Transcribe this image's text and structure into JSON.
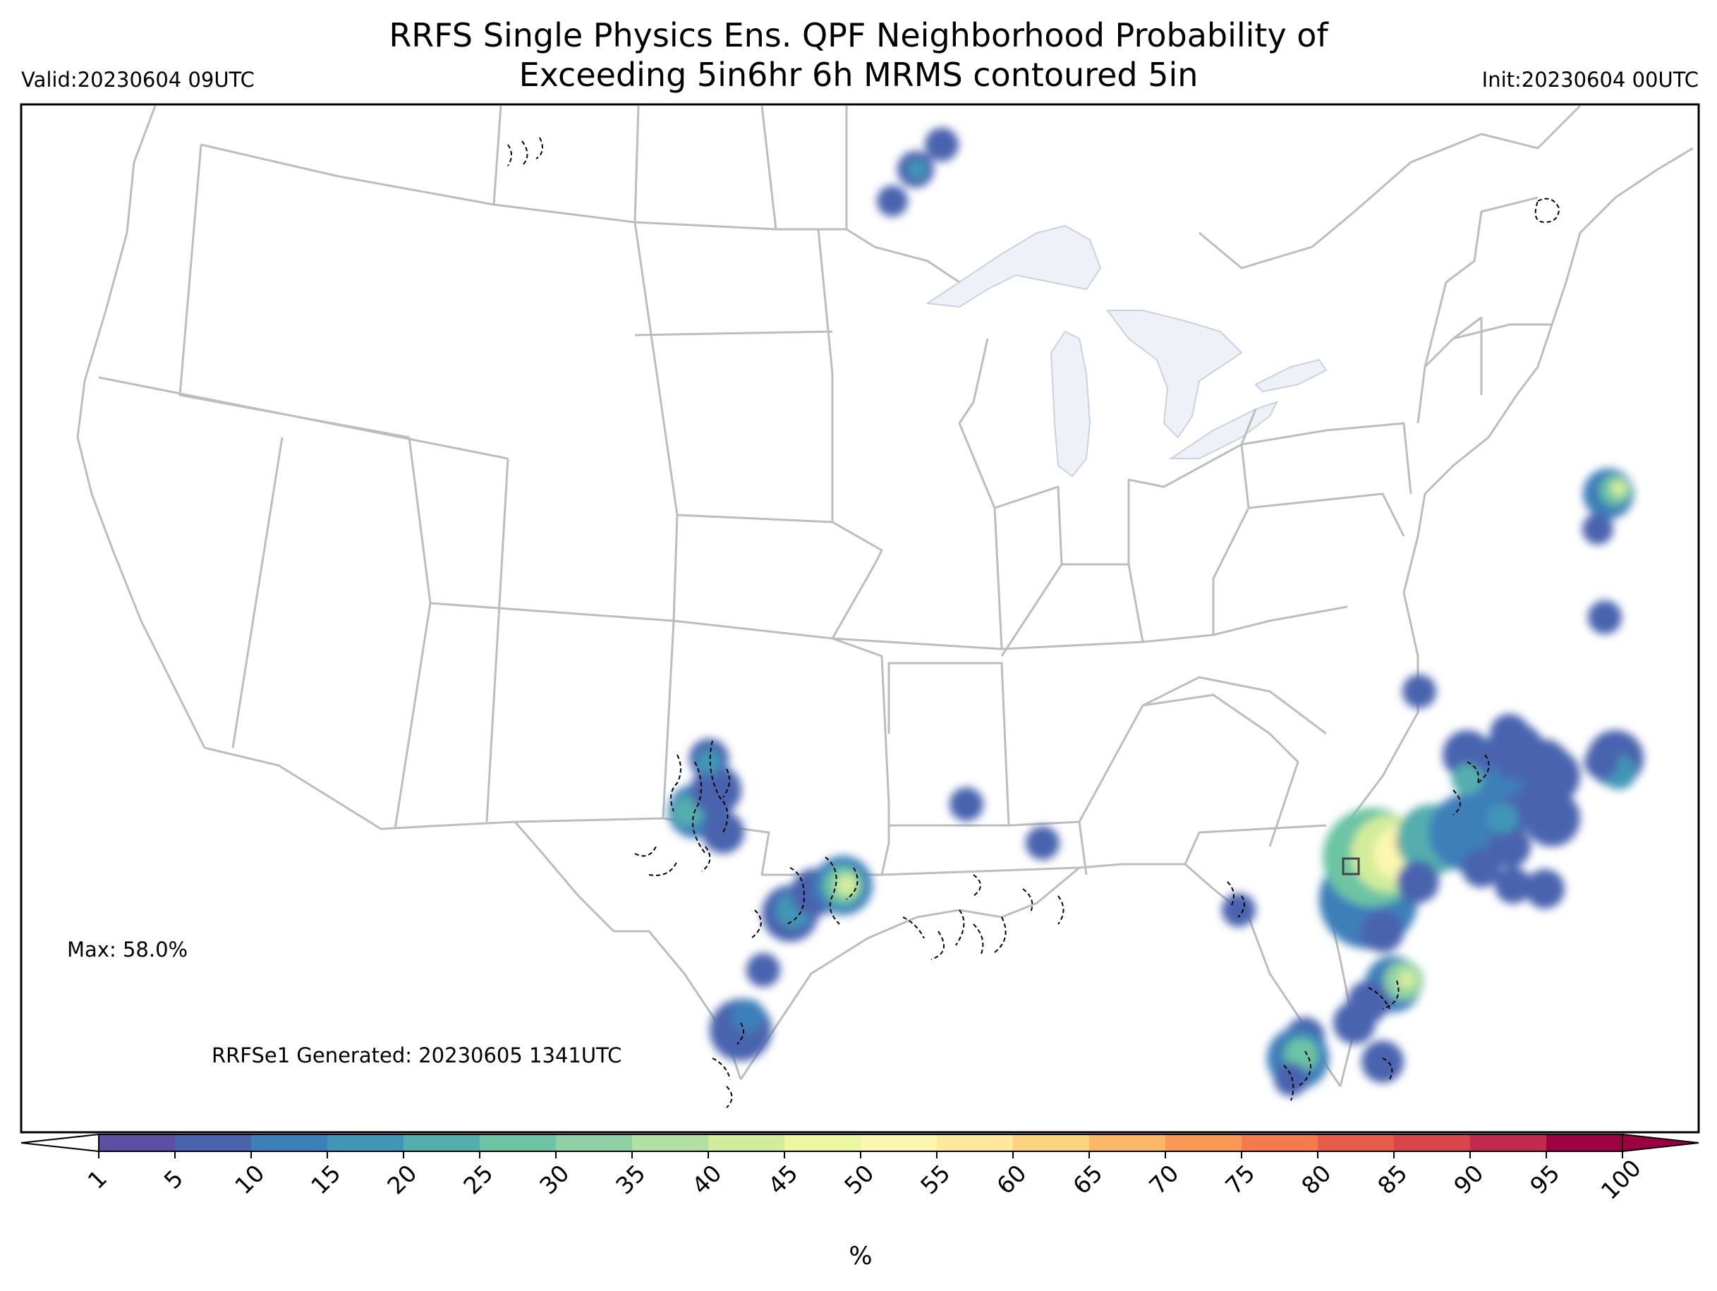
{
  "title_line1": "RRFS Single Physics Ens. QPF Neighborhood Probability of",
  "title_line2": "Exceeding 5in6hr 6h MRMS contoured 5in",
  "valid_label": "Valid:20230604 09UTC",
  "init_label": "Init:20230604 00UTC",
  "max_label": "Max: 58.0%",
  "generated_label": "RRFSe1 Generated: 20230605 1341UTC",
  "colorbar": {
    "unit_label": "%",
    "ticks": [
      "1",
      "5",
      "10",
      "15",
      "20",
      "25",
      "30",
      "35",
      "40",
      "45",
      "50",
      "55",
      "60",
      "65",
      "70",
      "75",
      "80",
      "85",
      "90",
      "95",
      "100"
    ],
    "colors": [
      "#5e4fa2",
      "#4a63af",
      "#3d7fb9",
      "#3f96b7",
      "#54aead",
      "#6cc4a4",
      "#8fd1a4",
      "#b1e0a2",
      "#d1ec9c",
      "#ecf7a0",
      "#fbf7b0",
      "#fee89a",
      "#fdd380",
      "#fdb768",
      "#fa9856",
      "#f47a49",
      "#e85d4a",
      "#d8464c",
      "#c02c4a",
      "#9e0142"
    ]
  },
  "map_colors": {
    "border": "#bdbdbd",
    "lake_fill": "#eef2f8",
    "contour": "#000000"
  }
}
